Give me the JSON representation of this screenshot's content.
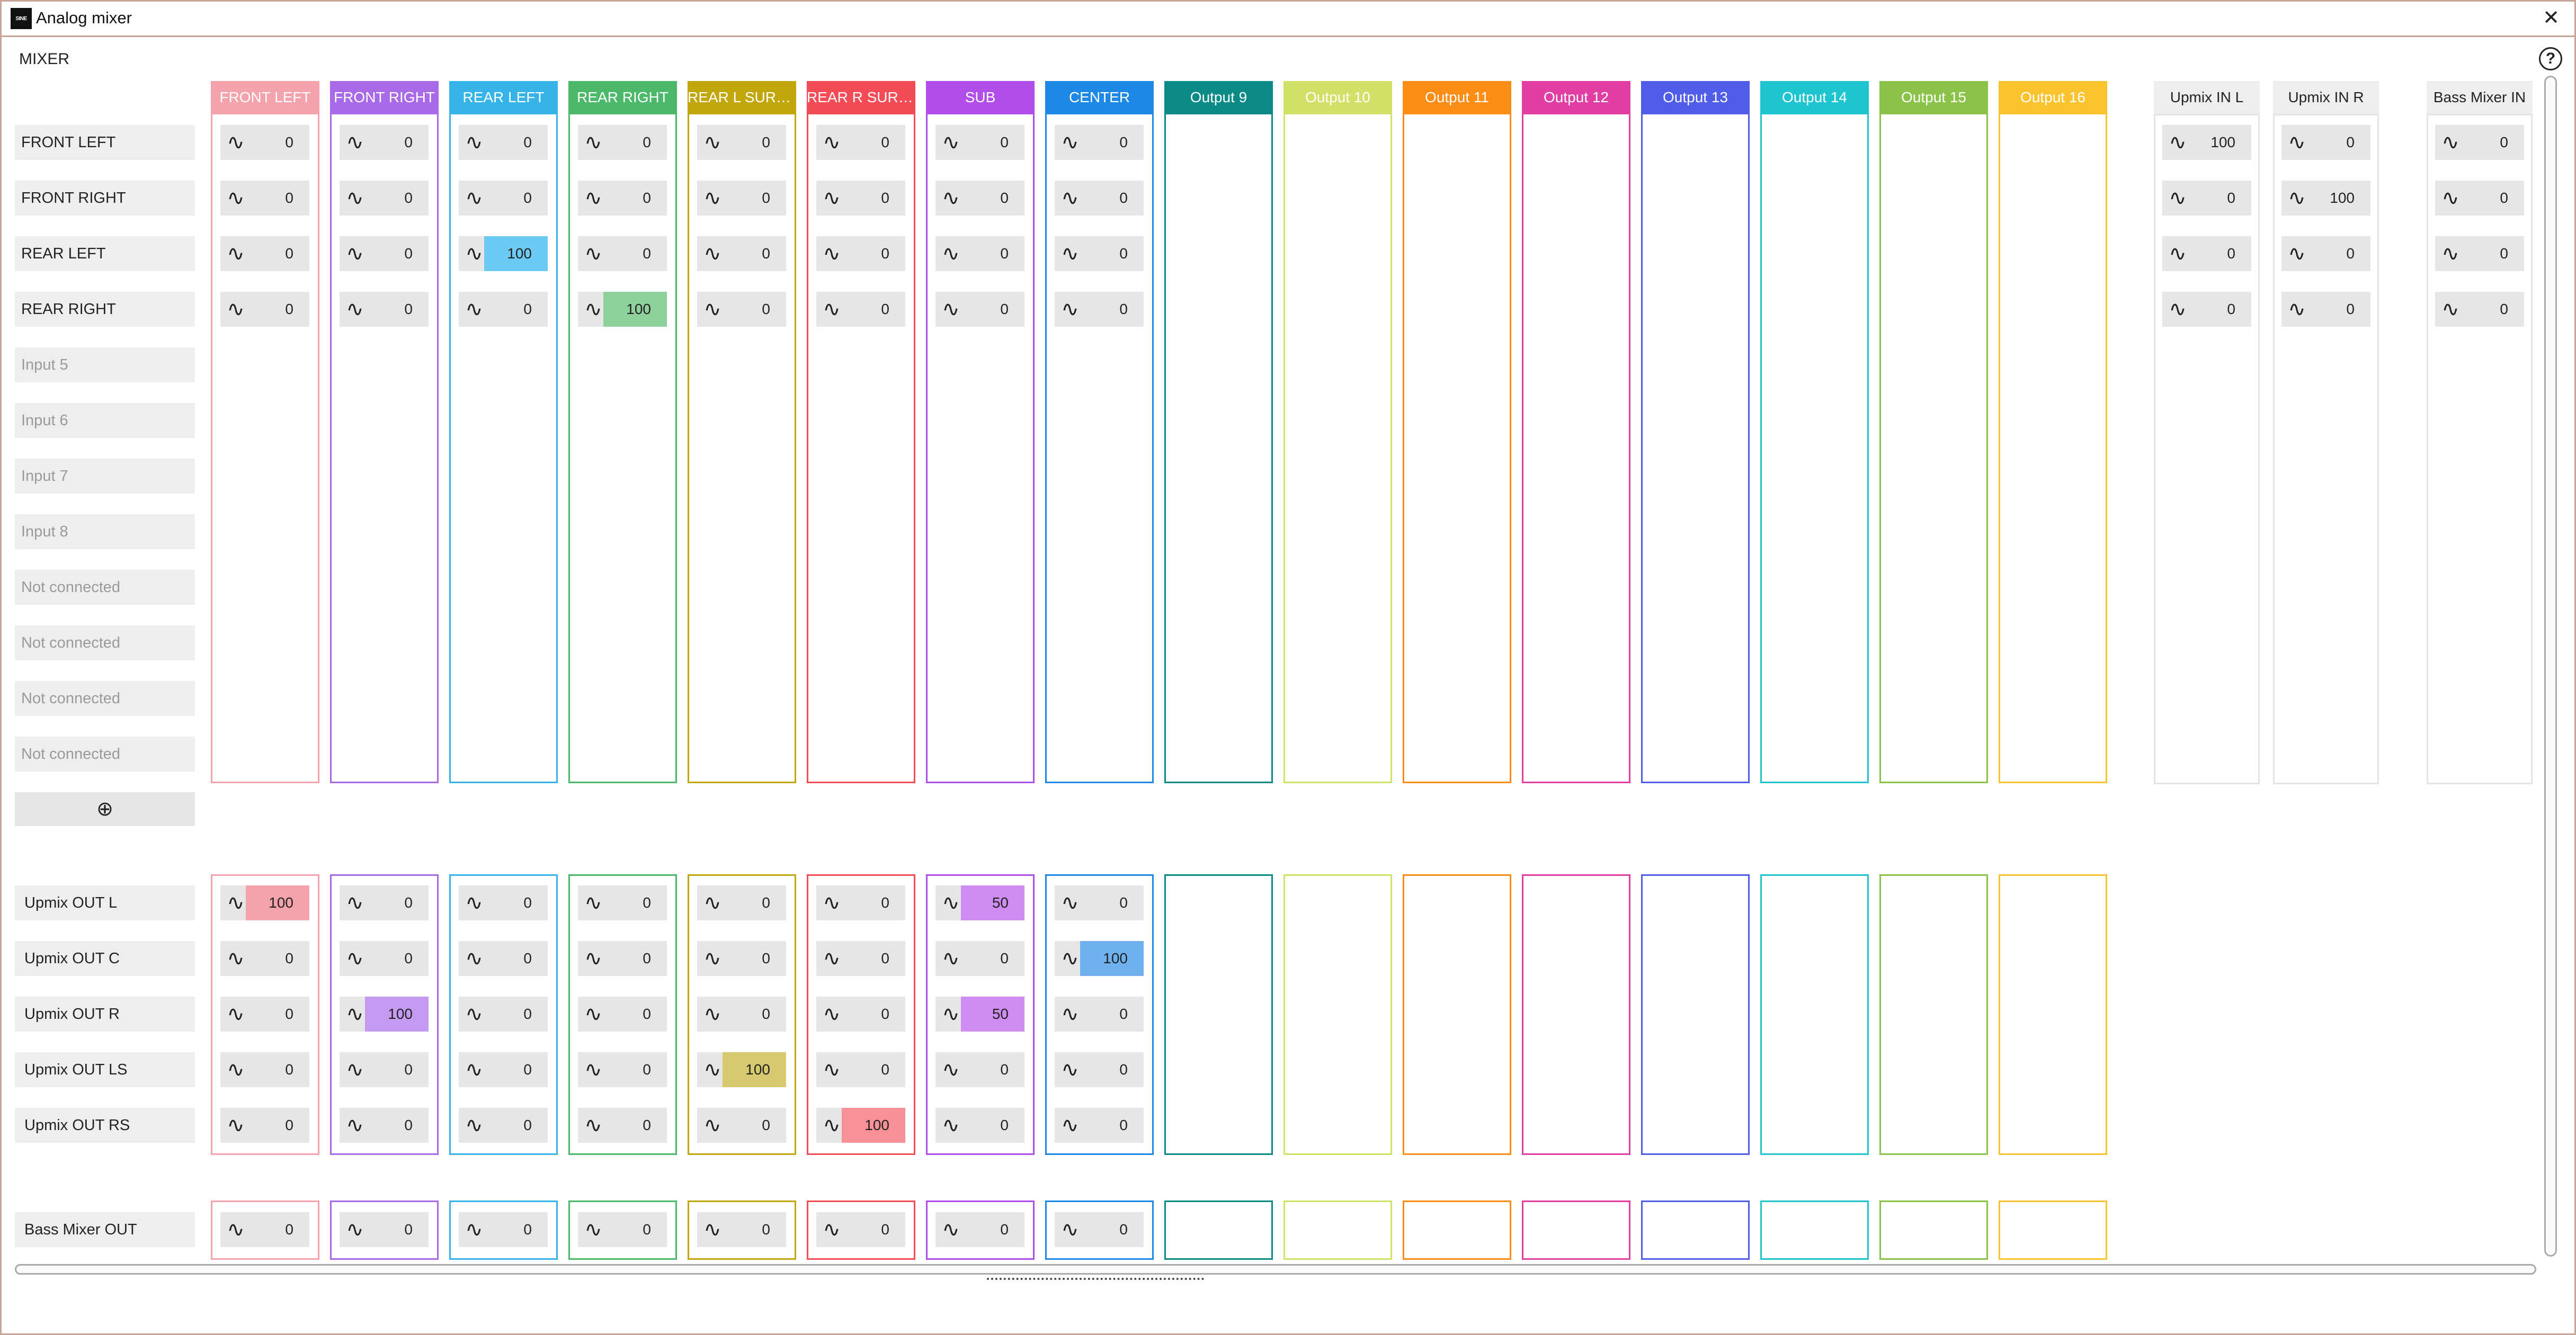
{
  "window": {
    "title": "Analog mixer",
    "logo_text": "SINE",
    "close_glyph": "✕",
    "icons": {
      "logo": "app-logo-icon",
      "close": "close-icon",
      "help": "help-icon",
      "add": "plus-circle-icon",
      "wave": "sine-wave-icon"
    }
  },
  "mixer": {
    "label": "MIXER",
    "help_glyph": "?",
    "add_glyph": "⊕",
    "wave_glyph": "∿"
  },
  "columns": [
    {
      "label": "FRONT LEFT",
      "color": "#f4a3ad",
      "active": "#f4a3ad"
    },
    {
      "label": "FRONT RIGHT",
      "color": "#a86ae6",
      "active": "#c49af0"
    },
    {
      "label": "REAR LEFT",
      "color": "#36b4ea",
      "active": "#6ccaf3"
    },
    {
      "label": "REAR RIGHT",
      "color": "#4bb86a",
      "active": "#8fd19c"
    },
    {
      "label": "REAR L SURR...",
      "color": "#c1a60c",
      "active": "#d7c96e"
    },
    {
      "label": "REAR R SURR...",
      "color": "#f34c56",
      "active": "#f89097"
    },
    {
      "label": "SUB",
      "color": "#b14de8",
      "active": "#cf8df2"
    },
    {
      "label": "CENTER",
      "color": "#1e88e5",
      "active": "#6fb0ee"
    },
    {
      "label": "Output 9",
      "color": "#0b8a86",
      "active": "#0b8a86"
    },
    {
      "label": "Output 10",
      "color": "#d1e067",
      "active": "#d1e067"
    },
    {
      "label": "Output 11",
      "color": "#fb8c16",
      "active": "#fb8c16"
    },
    {
      "label": "Output 12",
      "color": "#e03ea2",
      "active": "#e03ea2"
    },
    {
      "label": "Output 13",
      "color": "#4f5de8",
      "active": "#4f5de8"
    },
    {
      "label": "Output 14",
      "color": "#1ec4d0",
      "active": "#1ec4d0"
    },
    {
      "label": "Output 15",
      "color": "#8bc34a",
      "active": "#8bc34a"
    },
    {
      "label": "Output 16",
      "color": "#fbc42e",
      "active": "#fbc42e"
    }
  ],
  "upmix_in_columns": [
    {
      "label": "Upmix IN L"
    },
    {
      "label": "Upmix IN R"
    }
  ],
  "bass_in_column": {
    "label": "Bass Mixer IN"
  },
  "inputs": [
    {
      "label": "FRONT LEFT",
      "connected": true,
      "values": [
        0,
        0,
        0,
        0,
        0,
        0,
        0,
        0
      ],
      "upmix": [
        100,
        0
      ],
      "bass": 0
    },
    {
      "label": "FRONT RIGHT",
      "connected": true,
      "values": [
        0,
        0,
        0,
        0,
        0,
        0,
        0,
        0
      ],
      "upmix": [
        0,
        100
      ],
      "bass": 0
    },
    {
      "label": "REAR LEFT",
      "connected": true,
      "values": [
        0,
        0,
        100,
        0,
        0,
        0,
        0,
        0
      ],
      "upmix": [
        0,
        0
      ],
      "bass": 0
    },
    {
      "label": "REAR RIGHT",
      "connected": true,
      "values": [
        0,
        0,
        0,
        100,
        0,
        0,
        0,
        0
      ],
      "upmix": [
        0,
        0
      ],
      "bass": 0
    },
    {
      "label": "Input 5",
      "connected": false
    },
    {
      "label": "Input 6",
      "connected": false
    },
    {
      "label": "Input 7",
      "connected": false
    },
    {
      "label": "Input 8",
      "connected": false
    },
    {
      "label": "Not connected",
      "connected": false
    },
    {
      "label": "Not connected",
      "connected": false
    },
    {
      "label": "Not connected",
      "connected": false
    },
    {
      "label": "Not connected",
      "connected": false
    }
  ],
  "upmix_out": [
    {
      "label": "Upmix OUT L",
      "values": [
        100,
        0,
        0,
        0,
        0,
        0,
        50,
        0
      ]
    },
    {
      "label": "Upmix OUT C",
      "values": [
        0,
        0,
        0,
        0,
        0,
        0,
        0,
        100
      ]
    },
    {
      "label": "Upmix OUT R",
      "values": [
        0,
        100,
        0,
        0,
        0,
        0,
        50,
        0
      ]
    },
    {
      "label": "Upmix OUT LS",
      "values": [
        0,
        0,
        0,
        0,
        100,
        0,
        0,
        0
      ]
    },
    {
      "label": "Upmix OUT RS",
      "values": [
        0,
        0,
        0,
        0,
        0,
        100,
        0,
        0
      ]
    }
  ],
  "bass_out": {
    "label": "Bass Mixer OUT",
    "values": [
      0,
      0,
      0,
      0,
      0,
      0,
      0,
      0
    ]
  }
}
